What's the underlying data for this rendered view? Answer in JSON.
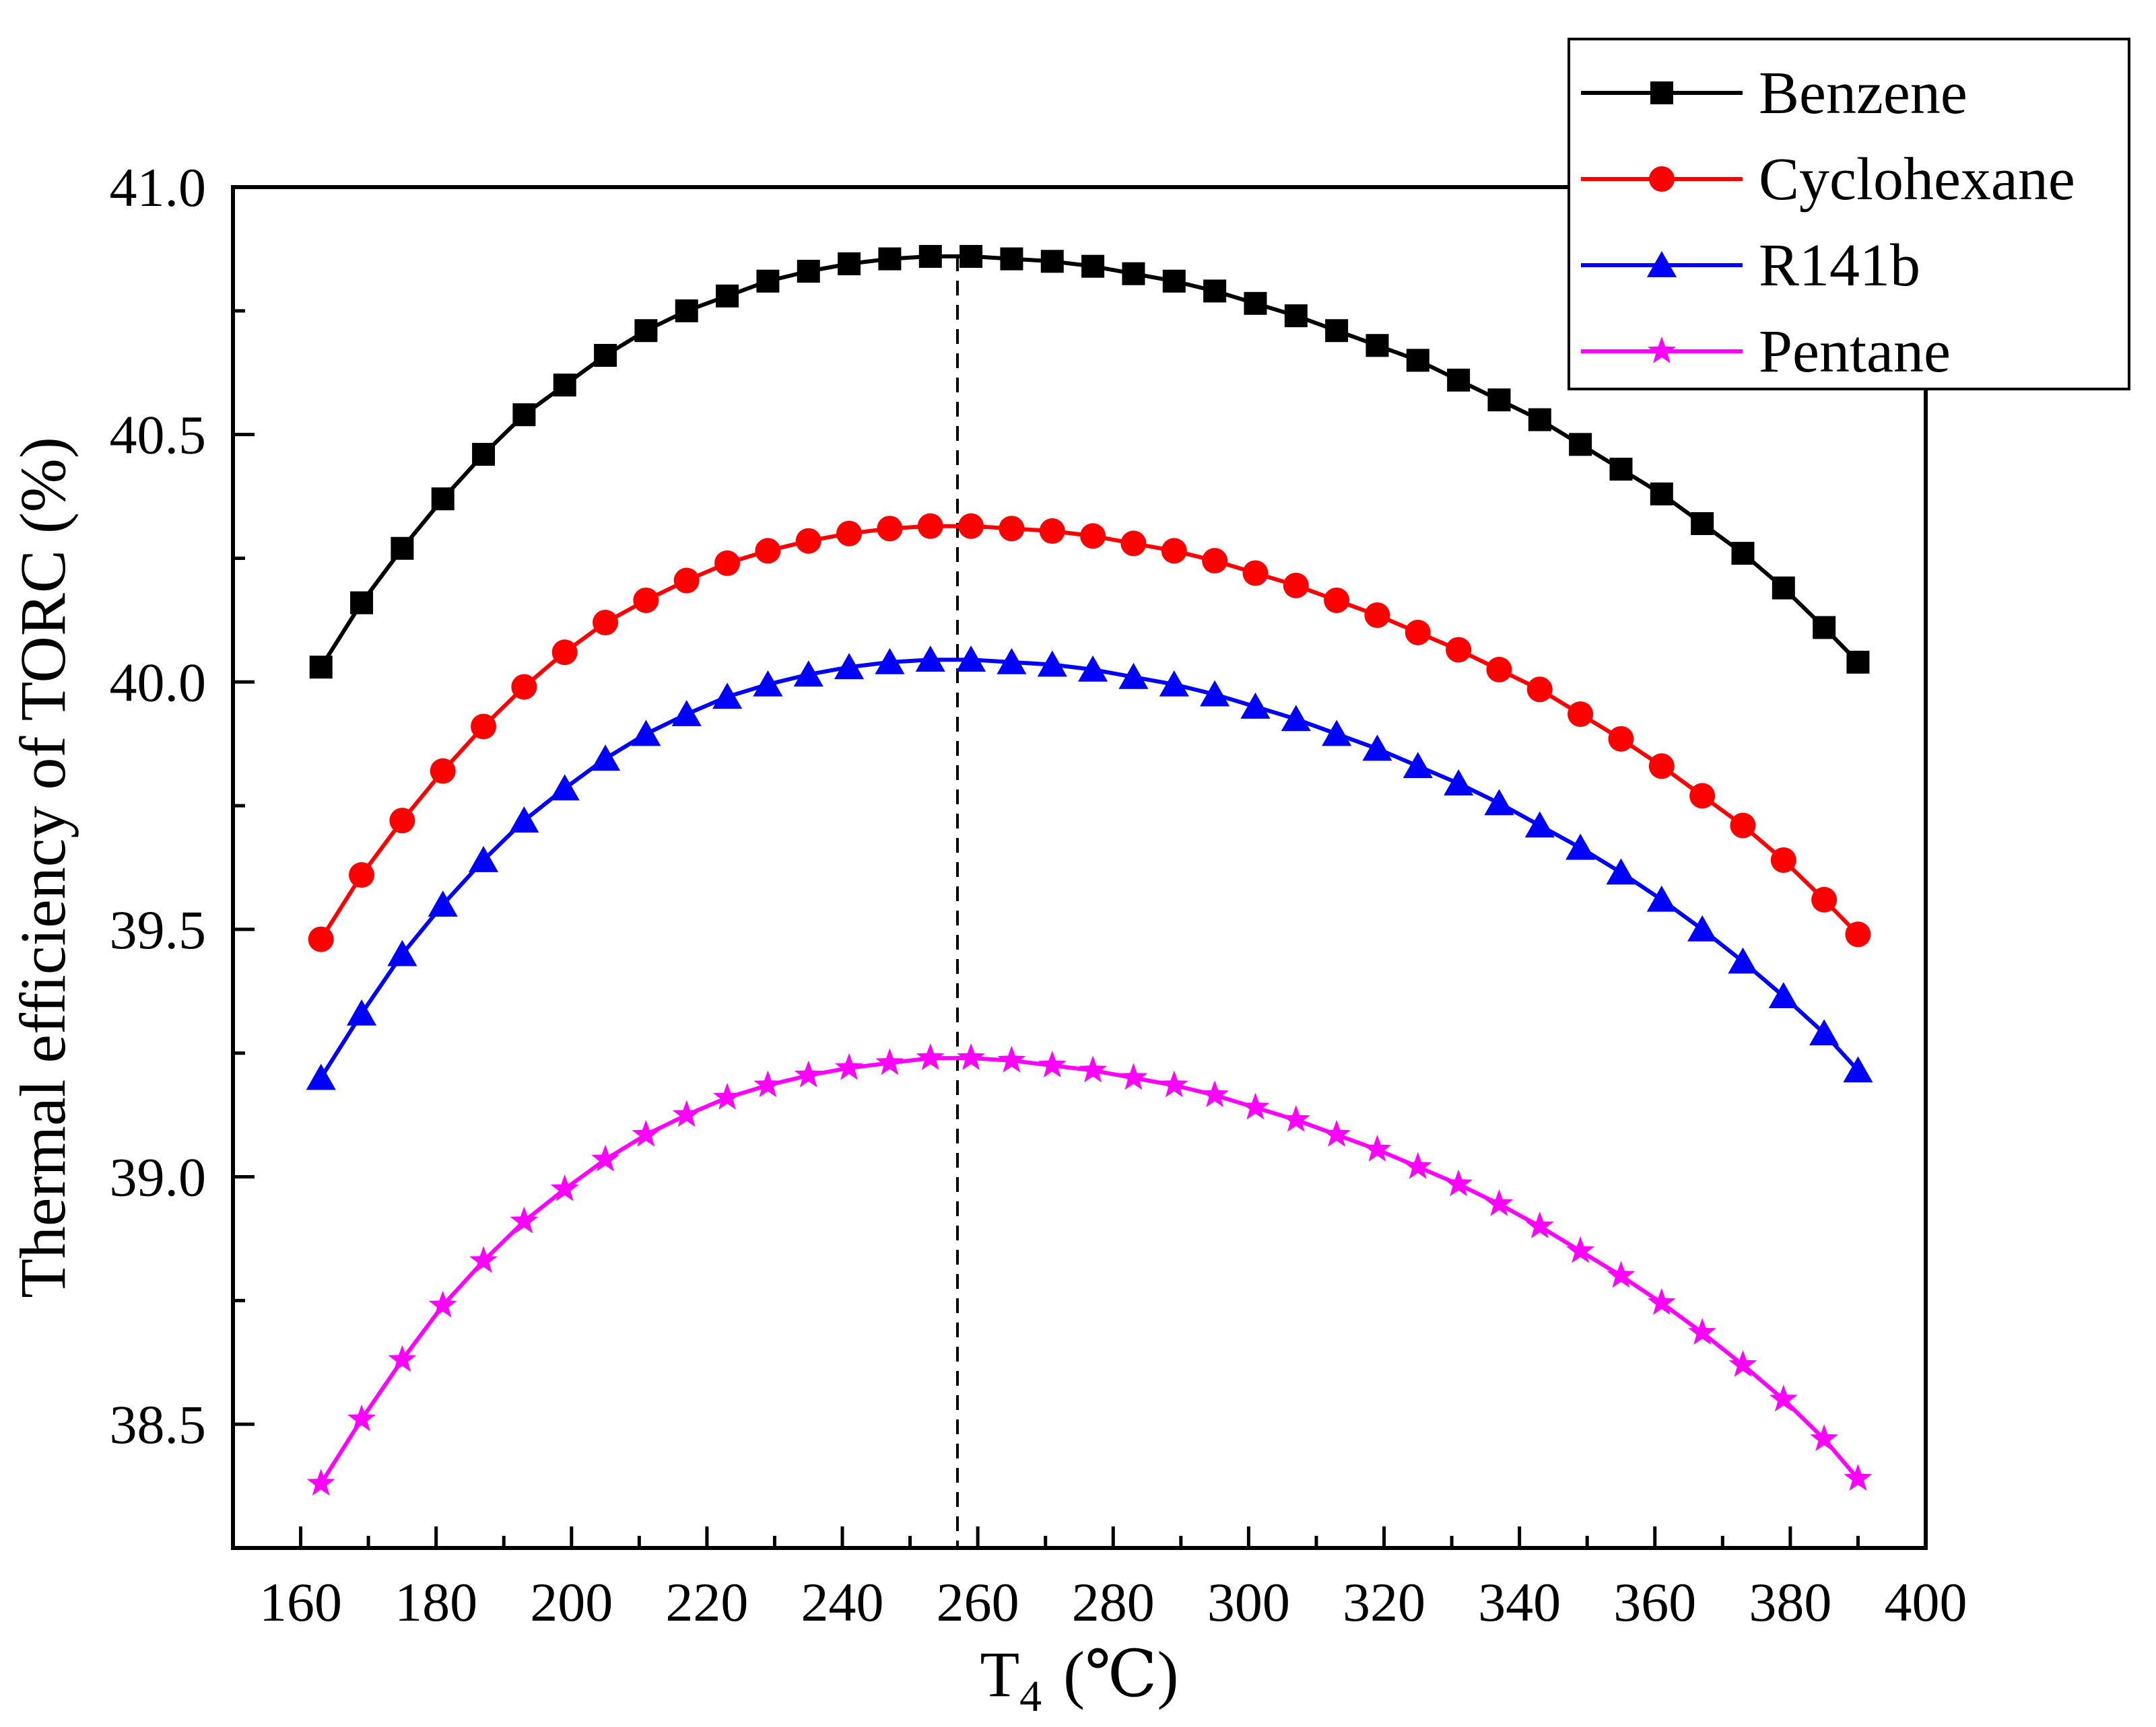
{
  "chart_data": {
    "type": "line",
    "title": "",
    "xlabel": "T",
    "xlabel_subscript": "4",
    "xlabel_unit": "(℃)",
    "ylabel": "Thermal efficiency of TORC (%)",
    "xlim": [
      150,
      400
    ],
    "ylim": [
      38.25,
      41.0
    ],
    "x_ticks": [
      160,
      180,
      200,
      220,
      240,
      260,
      280,
      300,
      320,
      340,
      360,
      380,
      400
    ],
    "x_tick_labels": [
      "160",
      "180",
      "200",
      "220",
      "240",
      "260",
      "280",
      "300",
      "320",
      "340",
      "360",
      "380",
      "400"
    ],
    "y_ticks": [
      38.5,
      39.0,
      39.5,
      40.0,
      40.5,
      41.0
    ],
    "y_tick_labels": [
      "38.5",
      "39.0",
      "39.5",
      "40.0",
      "40.5",
      "41.0"
    ],
    "reference_line_x": 257,
    "legend_position": "top-right",
    "x": [
      163,
      169,
      175,
      181,
      187,
      193,
      199,
      205,
      211,
      217,
      223,
      229,
      235,
      241,
      247,
      253,
      259,
      265,
      271,
      277,
      283,
      289,
      295,
      301,
      307,
      313,
      319,
      325,
      331,
      337,
      343,
      349,
      355,
      361,
      367,
      373,
      379,
      385,
      390
    ],
    "series": [
      {
        "name": "Benzene",
        "color": "#000000",
        "marker": "square",
        "values": [
          40.03,
          40.16,
          40.27,
          40.37,
          40.46,
          40.54,
          40.6,
          40.66,
          40.71,
          40.75,
          40.78,
          40.81,
          40.83,
          40.845,
          40.855,
          40.86,
          40.86,
          40.855,
          40.85,
          40.84,
          40.825,
          40.81,
          40.79,
          40.765,
          40.74,
          40.71,
          40.68,
          40.65,
          40.61,
          40.57,
          40.53,
          40.48,
          40.43,
          40.38,
          40.32,
          40.26,
          40.19,
          40.11,
          40.04
        ]
      },
      {
        "name": "Cyclohexane",
        "color": "#ff0000",
        "marker": "circle",
        "values": [
          39.48,
          39.61,
          39.72,
          39.82,
          39.91,
          39.99,
          40.06,
          40.12,
          40.165,
          40.205,
          40.24,
          40.265,
          40.285,
          40.3,
          40.31,
          40.315,
          40.315,
          40.31,
          40.305,
          40.295,
          40.28,
          40.265,
          40.245,
          40.22,
          40.195,
          40.165,
          40.135,
          40.1,
          40.065,
          40.025,
          39.985,
          39.935,
          39.885,
          39.83,
          39.77,
          39.71,
          39.64,
          39.56,
          39.49
        ]
      },
      {
        "name": "R141b",
        "color": "#0000ff",
        "marker": "triangle",
        "values": [
          39.2,
          39.33,
          39.45,
          39.55,
          39.64,
          39.72,
          39.785,
          39.845,
          39.895,
          39.935,
          39.97,
          39.995,
          40.015,
          40.03,
          40.04,
          40.045,
          40.045,
          40.04,
          40.035,
          40.025,
          40.01,
          39.995,
          39.975,
          39.95,
          39.925,
          39.895,
          39.865,
          39.83,
          39.795,
          39.755,
          39.71,
          39.665,
          39.615,
          39.56,
          39.5,
          39.435,
          39.365,
          39.29,
          39.215
        ]
      },
      {
        "name": "Pentane",
        "color": "#ff00ff",
        "marker": "star",
        "values": [
          38.38,
          38.51,
          38.63,
          38.74,
          38.83,
          38.91,
          38.975,
          39.035,
          39.085,
          39.125,
          39.16,
          39.185,
          39.205,
          39.22,
          39.23,
          39.24,
          39.24,
          39.235,
          39.225,
          39.215,
          39.2,
          39.185,
          39.165,
          39.14,
          39.115,
          39.085,
          39.055,
          39.02,
          38.985,
          38.945,
          38.9,
          38.85,
          38.8,
          38.745,
          38.685,
          38.62,
          38.55,
          38.47,
          38.39
        ]
      }
    ]
  }
}
